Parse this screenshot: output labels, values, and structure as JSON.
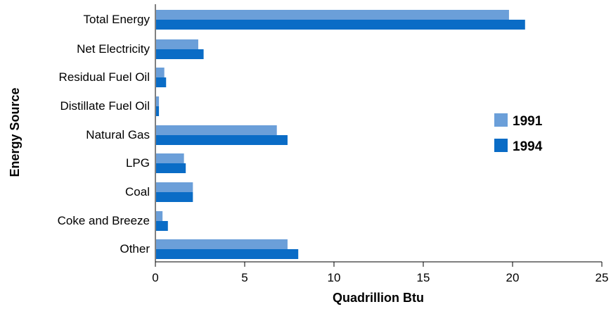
{
  "chart_data": {
    "type": "bar",
    "orientation": "horizontal",
    "categories": [
      "Total Energy",
      "Net Electricity",
      "Residual Fuel Oil",
      "Distillate Fuel Oil",
      "Natural Gas",
      "LPG",
      "Coal",
      "Coke and Breeze",
      "Other"
    ],
    "series": [
      {
        "name": "1991",
        "color": "#6b9fd9",
        "values": [
          19.8,
          2.4,
          0.5,
          0.2,
          6.8,
          1.6,
          2.1,
          0.4,
          7.4
        ]
      },
      {
        "name": "1994",
        "color": "#0a6cc6",
        "values": [
          20.7,
          2.7,
          0.6,
          0.2,
          7.4,
          1.7,
          2.1,
          0.7,
          8.0
        ]
      }
    ],
    "title": "",
    "xlabel": "Quadrillion Btu",
    "ylabel": "Energy Source",
    "xlim": [
      0,
      25
    ],
    "xticks": [
      0,
      5,
      10,
      15,
      20,
      25
    ],
    "xtick_labels": [
      "0",
      "5",
      "10",
      "15",
      "20",
      "25"
    ],
    "grid": false,
    "legend_position": "right"
  }
}
